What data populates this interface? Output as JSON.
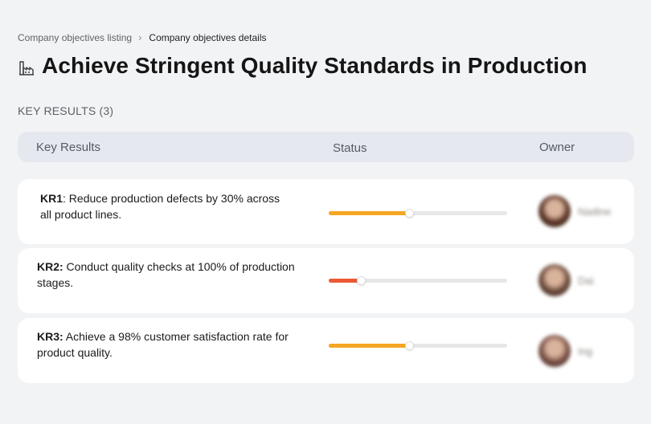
{
  "breadcrumb": {
    "items": [
      "Company objectives listing",
      "Company objectives details"
    ],
    "separator": "›"
  },
  "objective": {
    "title": "Achieve Stringent Quality Standards in Production",
    "icon": "factory-icon"
  },
  "key_results_section": {
    "label": "KEY RESULTS (3)"
  },
  "table": {
    "columns": [
      "Key Results",
      "Status",
      "Owner"
    ]
  },
  "key_results": [
    {
      "code": "KR1",
      "description": ": Reduce production defects by 30% across all product lines.",
      "progress": 0.45,
      "status_color": "#f5a623",
      "owner": {
        "name": "Nadine",
        "avatar_color": "#5a3426"
      }
    },
    {
      "code": "KR2:",
      "description": " Conduct quality checks at 100% of production stages.",
      "progress": 0.18,
      "status_color": "#ec5a35",
      "owner": {
        "name": "Dai",
        "avatar_color": "#6b4a3a"
      }
    },
    {
      "code": "KR3:",
      "description": " Achieve a 98% customer satisfaction rate for product quality.",
      "progress": 0.45,
      "status_color": "#f5a623",
      "owner": {
        "name": "Ing",
        "avatar_color": "#7a4f45"
      }
    }
  ],
  "colors": {
    "background": "#f2f3f5",
    "header_background": "#e5e9ef",
    "card_background": "#ffffff",
    "track": "#e7e7e7"
  }
}
